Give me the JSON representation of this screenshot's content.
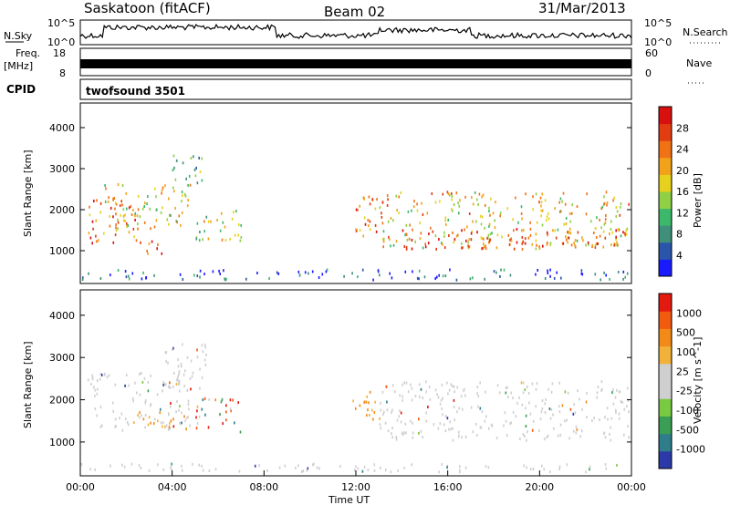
{
  "header": {
    "station": "Saskatoon (fitACF)",
    "beam": "Beam 02",
    "date": "31/Mar/2013"
  },
  "nsky_panel": {
    "left_label": "N.Sky",
    "right_label": "N.Search",
    "y_ticks": [
      "10^5",
      "10^0"
    ],
    "right_ticks": [
      "10^5",
      "10^0"
    ]
  },
  "freq_panel": {
    "label_line1": "Freq.",
    "label_line2": "[MHz]",
    "y_ticks": [
      "18",
      "8"
    ],
    "right_ticks": [
      "60",
      "0"
    ],
    "right_label": "Nave"
  },
  "cpid": {
    "label": "CPID",
    "value": "twofsound 3501"
  },
  "chart_data": [
    {
      "type": "heatmap",
      "name": "power",
      "ylabel": "Slant Range [km]",
      "xlabel": "",
      "ylim": [
        200,
        4600
      ],
      "xlim_hours": [
        0,
        24
      ],
      "y_ticks": [
        1000,
        2000,
        3000,
        4000
      ],
      "colorbar": {
        "label": "Power [dB]",
        "ticks": [
          "28",
          "24",
          "20",
          "16",
          "12",
          "8",
          "4"
        ],
        "colors": [
          "#1a1aff",
          "#2a55a8",
          "#3f8f7a",
          "#3cb86a",
          "#8fd046",
          "#e6d21e",
          "#f2a21a",
          "#f07214",
          "#e23d10",
          "#d81010"
        ]
      },
      "regions": [
        {
          "t0": 0.3,
          "t1": 2.8,
          "r0": 1100,
          "r1": 2200,
          "level": 0.75
        },
        {
          "t0": 1.0,
          "t1": 4.8,
          "r0": 1500,
          "r1": 2600,
          "level": 0.55
        },
        {
          "t0": 2.5,
          "t1": 3.6,
          "r0": 800,
          "r1": 1200,
          "level": 0.85
        },
        {
          "t0": 4.0,
          "t1": 5.5,
          "r0": 2600,
          "r1": 3300,
          "level": 0.35
        },
        {
          "t0": 5.0,
          "t1": 7.2,
          "r0": 1200,
          "r1": 2000,
          "level": 0.5
        },
        {
          "t0": 11.7,
          "t1": 13.2,
          "r0": 1300,
          "r1": 2300,
          "level": 0.8
        },
        {
          "t0": 13.0,
          "t1": 23.9,
          "r0": 1000,
          "r1": 2400,
          "level": 0.6
        },
        {
          "t0": 14.0,
          "t1": 23.9,
          "r0": 1000,
          "r1": 1500,
          "level": 0.8
        },
        {
          "t0": 0.0,
          "t1": 24.0,
          "r0": 250,
          "r1": 500,
          "level": 0.15
        }
      ]
    },
    {
      "type": "heatmap",
      "name": "velocity",
      "ylabel": "Slant Range [km]",
      "xlabel": "Time UT",
      "ylim": [
        200,
        4600
      ],
      "xlim_hours": [
        0,
        24
      ],
      "y_ticks": [
        1000,
        2000,
        3000,
        4000
      ],
      "x_ticks": [
        "00:00",
        "04:00",
        "08:00",
        "12:00",
        "16:00",
        "20:00",
        "00:00"
      ],
      "colorbar": {
        "label": "Velocity [m s^-1]",
        "ticks": [
          "1000",
          "500",
          "100",
          "25",
          "-25",
          "-100",
          "-500",
          "-1000"
        ],
        "colors": [
          "#2b3aa8",
          "#2f7d8a",
          "#3a9e55",
          "#79c943",
          "#cfcfcf",
          "#cfcfcf",
          "#f2b23a",
          "#f28a1a",
          "#f25a10",
          "#e41a10"
        ]
      },
      "regions": [
        {
          "t0": 0.3,
          "t1": 4.8,
          "r0": 1200,
          "r1": 2600,
          "kind": "gray"
        },
        {
          "t0": 3.5,
          "t1": 5.5,
          "r0": 2200,
          "r1": 3300,
          "kind": "gray"
        },
        {
          "t0": 2.3,
          "t1": 4.6,
          "r0": 1250,
          "r1": 1700,
          "kind": "orange"
        },
        {
          "t0": 5.0,
          "t1": 7.0,
          "r0": 1200,
          "r1": 2000,
          "kind": "mixed"
        },
        {
          "t0": 11.7,
          "t1": 13.0,
          "r0": 1400,
          "r1": 2200,
          "kind": "orange"
        },
        {
          "t0": 13.0,
          "t1": 23.9,
          "r0": 1000,
          "r1": 2400,
          "kind": "gray"
        },
        {
          "t0": 0.0,
          "t1": 24.0,
          "r0": 250,
          "r1": 450,
          "kind": "gray"
        }
      ]
    }
  ]
}
